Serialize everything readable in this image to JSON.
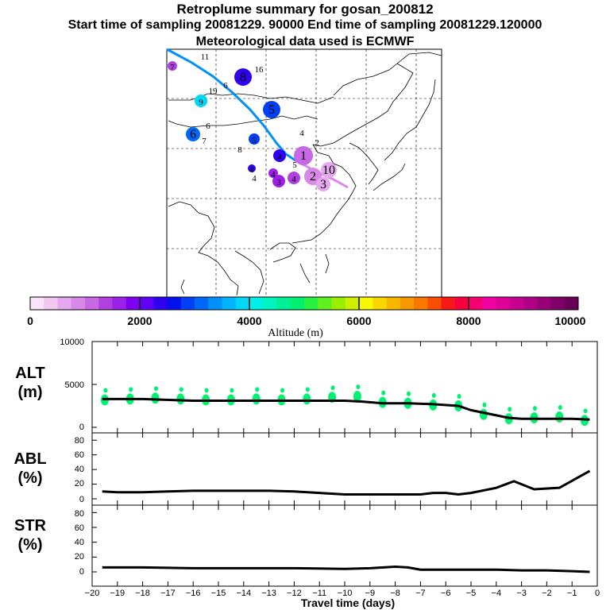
{
  "title": {
    "line1": "Retroplume summary for gosan_200812",
    "line2": "Start time of sampling 20081229. 90000     End time of sampling 20081229.120000",
    "line3": "Meteorological data used is ECMWF"
  },
  "colorbar": {
    "label": "Altitude (m)",
    "ticks": [
      "0",
      "2000",
      "4000",
      "6000",
      "8000",
      "10000"
    ],
    "colors": [
      "#f8e4f8",
      "#f0c8f0",
      "#e4a8ec",
      "#d888e8",
      "#c868e4",
      "#b040e0",
      "#9c20e8",
      "#8000f0",
      "#6000f8",
      "#3000f0",
      "#0010f0",
      "#0040f4",
      "#0068f8",
      "#0090fc",
      "#00b4fc",
      "#00d8f8",
      "#00f0e8",
      "#00f4c0",
      "#00f098",
      "#00f070",
      "#28f040",
      "#60f020",
      "#98f000",
      "#ccf000",
      "#f8f800",
      "#f8d800",
      "#f8b800",
      "#f89800",
      "#f87800",
      "#f85000",
      "#f81818",
      "#f80040",
      "#f80070",
      "#f000a0",
      "#e00098",
      "#c80090",
      "#b00088",
      "#980078",
      "#800068",
      "#680058"
    ]
  },
  "map": {
    "trajectory_labels": [
      {
        "text": "7",
        "color": "#b040e0"
      },
      {
        "text": "11",
        "color": "#0010f0"
      },
      {
        "text": "8",
        "color": "#3000f0"
      },
      {
        "text": "16",
        "color": "#00b4fc"
      },
      {
        "text": "6",
        "color": "#0040f4"
      },
      {
        "text": "19",
        "color": "#0068f8"
      },
      {
        "text": "9",
        "color": "#00d8f8"
      },
      {
        "text": "5",
        "color": "#0040f4"
      },
      {
        "text": "6",
        "color": "#0068f8"
      },
      {
        "text": "6",
        "color": "#0068f8"
      },
      {
        "text": "7",
        "color": "#0040f4"
      },
      {
        "text": "5",
        "color": "#0040f4"
      },
      {
        "text": "8",
        "color": "#3000f0"
      },
      {
        "text": "4",
        "color": "#3000f0"
      },
      {
        "text": "2",
        "color": "#b040e0"
      },
      {
        "text": "4",
        "color": "#3000f0"
      },
      {
        "text": "4",
        "color": "#3000f0"
      },
      {
        "text": "4",
        "color": "#9c20e8"
      },
      {
        "text": "3",
        "color": "#9c20e8"
      },
      {
        "text": "4",
        "color": "#b040e0"
      },
      {
        "text": "5",
        "color": "#c868e4"
      },
      {
        "text": "1",
        "color": "#c868e4"
      },
      {
        "text": "2",
        "color": "#d888e8"
      },
      {
        "text": "10",
        "color": "#e4a8ec"
      },
      {
        "text": "3",
        "color": "#e4a8ec"
      },
      {
        "text": "4",
        "color": "#9c20e8"
      }
    ]
  },
  "panels": {
    "alt": {
      "label_line1": "ALT",
      "label_line2": "(m)",
      "y_ticks": [
        "0",
        "5000",
        "10000"
      ]
    },
    "abl": {
      "label_line1": "ABL",
      "label_line2": "(%)",
      "y_ticks": [
        "0",
        "20",
        "40",
        "60",
        "80"
      ]
    },
    "str": {
      "label_line1": "STR",
      "label_line2": "(%)",
      "y_ticks": [
        "0",
        "20",
        "40",
        "60",
        "80"
      ]
    }
  },
  "chart_data": {
    "type": "line",
    "title": "Retroplume summary for gosan_200812",
    "xlabel": "Travel time (days)",
    "xlim": [
      -20,
      0
    ],
    "x_ticks": [
      "−20",
      "−19",
      "−18",
      "−17",
      "−16",
      "−15",
      "−14",
      "−13",
      "−12",
      "−11",
      "−10",
      "−9",
      "−8",
      "−7",
      "−6",
      "−5",
      "−4",
      "−3",
      "−2",
      "−1",
      "0"
    ],
    "series": [
      {
        "name": "ALT",
        "ylabel": "ALT (m)",
        "ylim": [
          0,
          10000
        ],
        "color": "#000000",
        "x": [
          -19.6,
          -18,
          -16,
          -14,
          -12,
          -10,
          -9.3,
          -8.5,
          -7.5,
          -6.5,
          -5.5,
          -5,
          -4,
          -3.5,
          -3,
          -2,
          -1,
          -0.3
        ],
        "y": [
          3300,
          3300,
          3100,
          3100,
          3100,
          3100,
          3000,
          2800,
          2800,
          2700,
          2500,
          2000,
          1400,
          1100,
          1000,
          1000,
          1000,
          900
        ]
      },
      {
        "name": "ALT clusters",
        "color": "#00f070",
        "x": [
          -19.5,
          -18.5,
          -17.5,
          -16.5,
          -15.5,
          -14.5,
          -13.5,
          -12.5,
          -11.5,
          -10.5,
          -9.5,
          -8.5,
          -7.5,
          -6.5,
          -5.5,
          -4.5,
          -3.5,
          -2.5,
          -1.5,
          -0.5
        ],
        "y": [
          3200,
          3300,
          3400,
          3300,
          3200,
          3200,
          3300,
          3200,
          3300,
          3500,
          3600,
          2900,
          2800,
          2600,
          2500,
          1500,
          1000,
          1100,
          1200,
          800
        ]
      },
      {
        "name": "ABL",
        "ylabel": "ABL (%)",
        "ylim": [
          0,
          90
        ],
        "color": "#000000",
        "x": [
          -19.6,
          -19,
          -18,
          -17,
          -16,
          -15,
          -14,
          -13,
          -12,
          -11,
          -10,
          -9,
          -8,
          -7,
          -6.5,
          -6,
          -5.5,
          -5,
          -4,
          -3.3,
          -2.5,
          -1.5,
          -0.3
        ],
        "y": [
          10,
          9,
          9,
          10,
          11,
          11,
          11,
          11,
          10,
          8,
          6,
          6,
          6,
          6,
          8,
          8,
          6,
          8,
          15,
          24,
          13,
          15,
          38
        ]
      },
      {
        "name": "STR",
        "ylabel": "STR (%)",
        "ylim": [
          0,
          90
        ],
        "color": "#000000",
        "x": [
          -19.6,
          -18,
          -16,
          -14,
          -12,
          -10,
          -9,
          -8,
          -7.5,
          -7,
          -6,
          -5,
          -4,
          -3,
          -2,
          -1,
          -0.3
        ],
        "y": [
          6,
          6,
          5,
          5,
          5,
          4,
          5,
          7,
          6,
          3,
          3,
          3,
          3,
          2,
          2,
          1,
          0
        ]
      }
    ]
  }
}
